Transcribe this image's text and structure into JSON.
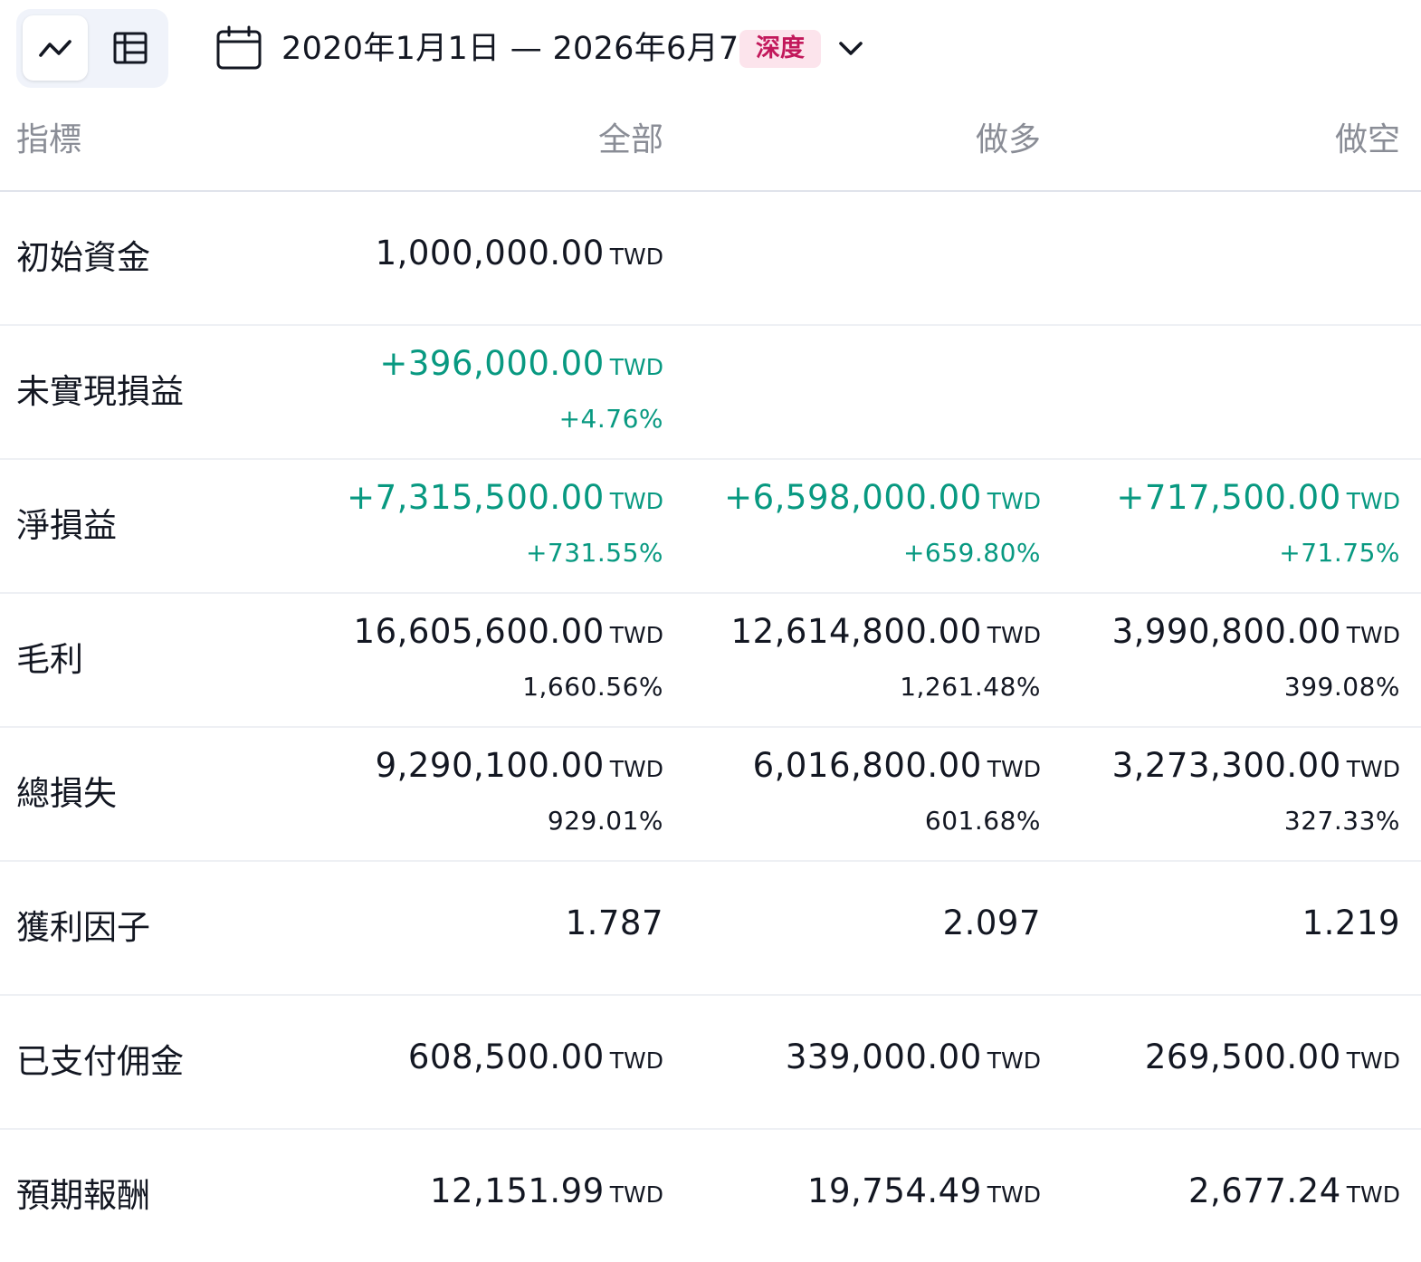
{
  "toolbar": {
    "view_toggle": [
      "chart-view",
      "table-view"
    ],
    "date_range": "2020年1月1日 — 2026年6月7日",
    "badge": "深度",
    "colors": {
      "badge_bg": "#fce4ec",
      "badge_text": "#c2185b",
      "positive": "#089981"
    }
  },
  "table": {
    "headers": {
      "metric": "指標",
      "all": "全部",
      "long": "做多",
      "short": "做空"
    },
    "unit": "TWD",
    "rows": {
      "initial_capital": {
        "label": "初始資金",
        "all": "1,000,000.00"
      },
      "unrealized_pnl": {
        "label": "未實現損益",
        "all": "+396,000.00",
        "all_pct": "+4.76%"
      },
      "net_pnl": {
        "label": "淨損益",
        "all": "+7,315,500.00",
        "all_pct": "+731.55%",
        "long": "+6,598,000.00",
        "long_pct": "+659.80%",
        "short": "+717,500.00",
        "short_pct": "+71.75%"
      },
      "gross_profit": {
        "label": "毛利",
        "all": "16,605,600.00",
        "all_pct": "1,660.56%",
        "long": "12,614,800.00",
        "long_pct": "1,261.48%",
        "short": "3,990,800.00",
        "short_pct": "399.08%"
      },
      "gross_loss": {
        "label": "總損失",
        "all": "9,290,100.00",
        "all_pct": "929.01%",
        "long": "6,016,800.00",
        "long_pct": "601.68%",
        "short": "3,273,300.00",
        "short_pct": "327.33%"
      },
      "profit_factor": {
        "label": "獲利因子",
        "all": "1.787",
        "long": "2.097",
        "short": "1.219"
      },
      "commission": {
        "label": "已支付佣金",
        "all": "608,500.00",
        "long": "339,000.00",
        "short": "269,500.00"
      },
      "expected_payoff": {
        "label": "預期報酬",
        "all": "12,151.99",
        "long": "19,754.49",
        "short": "2,677.24"
      }
    }
  }
}
